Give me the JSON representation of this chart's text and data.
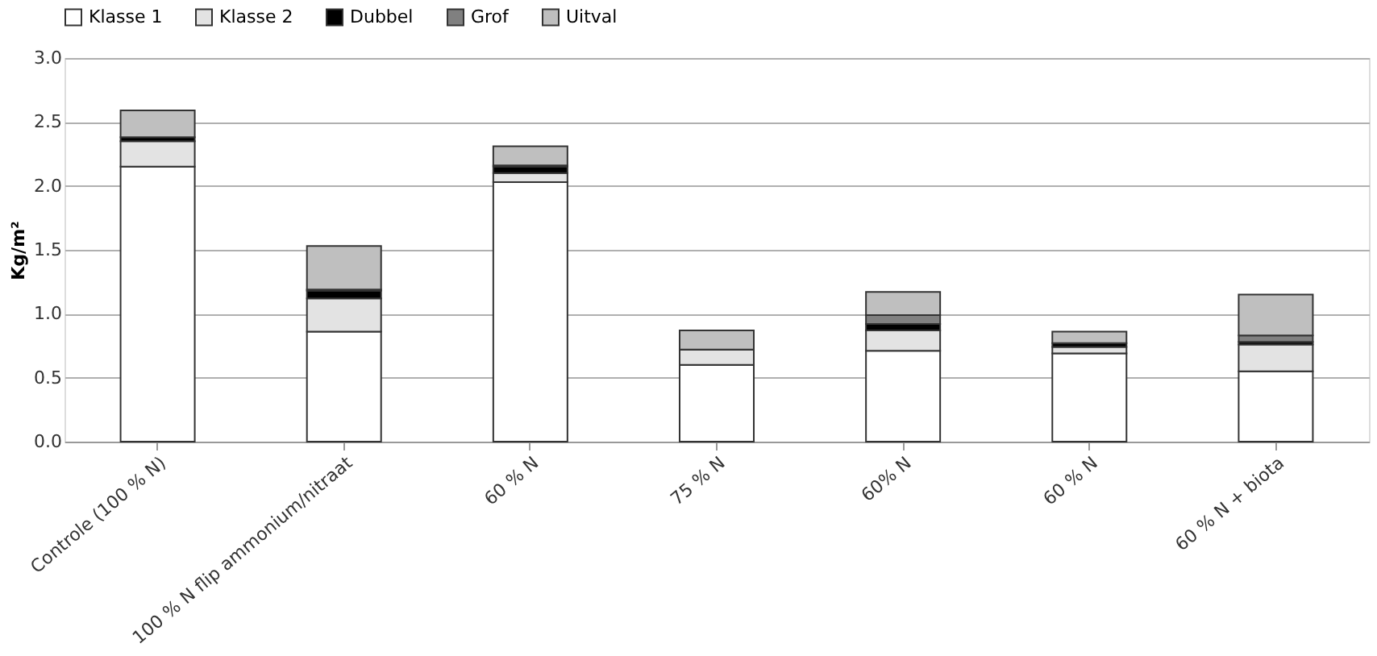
{
  "chart_data": {
    "type": "bar",
    "stacked": true,
    "ylabel": "Kg/m²",
    "categories": [
      "Controle (100 % N)",
      "100 % N flip ammonium/nitraat",
      "60 % N",
      "75 % N",
      "60% N",
      "60 % N",
      "60 % N + biota"
    ],
    "series": [
      {
        "name": "Klasse 1",
        "color": "#ffffff",
        "values": [
          2.15,
          0.86,
          2.03,
          0.6,
          0.71,
          0.69,
          0.55
        ]
      },
      {
        "name": "Klasse 2",
        "color": "#e3e3e3",
        "values": [
          0.2,
          0.26,
          0.07,
          0.12,
          0.16,
          0.05,
          0.21
        ]
      },
      {
        "name": "Dubbel",
        "color": "#000000",
        "values": [
          0.03,
          0.06,
          0.05,
          null,
          0.05,
          0.03,
          0.02
        ]
      },
      {
        "name": "Grof",
        "color": "#808080",
        "values": [
          null,
          0.01,
          0.01,
          0.0,
          0.07,
          0.0,
          0.05
        ]
      },
      {
        "name": "Uitval",
        "color": "#bfbfbf",
        "values": [
          0.21,
          0.34,
          0.15,
          0.15,
          0.18,
          0.09,
          0.32
        ]
      }
    ],
    "ylim": [
      0,
      3.0
    ],
    "yticks": [
      {
        "value": 0,
        "label": "0.0"
      },
      0.5,
      {
        "value": 1,
        "label": "1.0"
      },
      1.5,
      {
        "value": 2,
        "label": "2.0"
      },
      2.5,
      {
        "value": 3,
        "label": "3.0"
      }
    ],
    "grid": "y",
    "legend": "top"
  }
}
